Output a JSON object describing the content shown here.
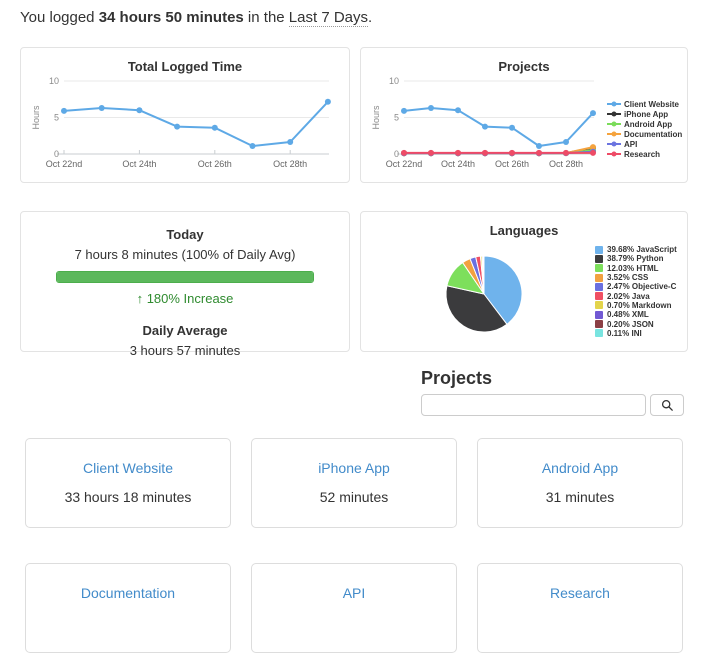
{
  "header": {
    "prefix": "You logged ",
    "total": "34 hours 50 minutes",
    "middle": " in the ",
    "range": "Last 7 Days",
    "suffix": "."
  },
  "chart_data": [
    {
      "type": "line",
      "title": "Total Logged Time",
      "ylabel": "Hours",
      "ylim": [
        0,
        10
      ],
      "yticks": [
        0,
        5,
        10
      ],
      "grid": "horizontal",
      "x": [
        "Oct 22nd",
        "Oct 23rd",
        "Oct 24th",
        "Oct 25th",
        "Oct 26th",
        "Oct 27th",
        "Oct 28th",
        "Oct 29th"
      ],
      "xtick_labels": [
        "Oct 22nd",
        "Oct 24th",
        "Oct 26th",
        "Oct 28th"
      ],
      "series": [
        {
          "name": "Total Logged Time",
          "color": "#5ea9e6",
          "values": [
            5.9,
            6.3,
            6.0,
            3.75,
            3.6,
            1.1,
            1.65,
            7.15
          ]
        }
      ]
    },
    {
      "type": "line",
      "title": "Projects",
      "ylabel": "Hours",
      "ylim": [
        0,
        10
      ],
      "yticks": [
        0,
        5,
        10
      ],
      "grid": "horizontal",
      "legend_position": "right",
      "x": [
        "Oct 22nd",
        "Oct 23rd",
        "Oct 24th",
        "Oct 25th",
        "Oct 26th",
        "Oct 27th",
        "Oct 28th",
        "Oct 29th"
      ],
      "xtick_labels": [
        "Oct 22nd",
        "Oct 24th",
        "Oct 26th",
        "Oct 28th"
      ],
      "series": [
        {
          "name": "Client Website",
          "color": "#5ea9e6",
          "values": [
            5.9,
            6.3,
            6.0,
            3.75,
            3.6,
            1.1,
            1.65,
            5.6
          ]
        },
        {
          "name": "iPhone App",
          "color": "#333333",
          "values": [
            0.1,
            0.1,
            0.1,
            0.1,
            0.1,
            0.1,
            0.12,
            0.85
          ]
        },
        {
          "name": "Android App",
          "color": "#7bdc5a",
          "values": [
            0.1,
            0.1,
            0.1,
            0.1,
            0.1,
            0.1,
            0.12,
            0.5
          ]
        },
        {
          "name": "Documentation",
          "color": "#f5a33d",
          "values": [
            0.1,
            0.1,
            0.1,
            0.1,
            0.1,
            0.1,
            0.12,
            0.95
          ]
        },
        {
          "name": "API",
          "color": "#6b74e0",
          "values": [
            0.1,
            0.1,
            0.1,
            0.1,
            0.1,
            0.1,
            0.12,
            0.3
          ]
        },
        {
          "name": "Research",
          "color": "#ee4b66",
          "values": [
            0.15,
            0.15,
            0.15,
            0.15,
            0.15,
            0.15,
            0.15,
            0.15
          ]
        }
      ]
    },
    {
      "type": "pie",
      "title": "Languages",
      "slices": [
        {
          "label": "JavaScript",
          "value": 39.68,
          "display": "39.68% JavaScript",
          "color": "#6fb3ec"
        },
        {
          "label": "Python",
          "value": 38.79,
          "display": "38.79% Python",
          "color": "#3b3b3d"
        },
        {
          "label": "HTML",
          "value": 12.03,
          "display": "12.03% HTML",
          "color": "#7ddf5c"
        },
        {
          "label": "CSS",
          "value": 3.52,
          "display": "3.52% CSS",
          "color": "#f2a140"
        },
        {
          "label": "Objective-C",
          "value": 2.47,
          "display": "2.47% Objective-C",
          "color": "#6b6fdf"
        },
        {
          "label": "Java",
          "value": 2.02,
          "display": "2.02% Java",
          "color": "#f04f63"
        },
        {
          "label": "Markdown",
          "value": 0.7,
          "display": "0.70% Markdown",
          "color": "#e3d44b"
        },
        {
          "label": "XML",
          "value": 0.48,
          "display": "0.48% XML",
          "color": "#7159d3"
        },
        {
          "label": "JSON",
          "value": 0.2,
          "display": "0.20% JSON",
          "color": "#8b3f45"
        },
        {
          "label": "INI",
          "value": 0.11,
          "display": "0.11% INI",
          "color": "#79e4e0"
        }
      ]
    }
  ],
  "today": {
    "title": "Today",
    "summary": "7 hours 8 minutes (100% of Daily Avg)",
    "progress_pct": 100,
    "increase_arrow": "↑",
    "increase_text": "180% Increase",
    "daily_average_title": "Daily Average",
    "daily_average_value": "3 hours 57 minutes"
  },
  "projects_section": {
    "title": "Projects",
    "search_value": "",
    "search_placeholder": "",
    "search_icon": "magnifier",
    "cards": [
      {
        "name": "Client Website",
        "time": "33 hours 18 minutes"
      },
      {
        "name": "iPhone App",
        "time": "52 minutes"
      },
      {
        "name": "Android App",
        "time": "31 minutes"
      },
      {
        "name": "Documentation",
        "time": ""
      },
      {
        "name": "API",
        "time": ""
      },
      {
        "name": "Research",
        "time": ""
      }
    ]
  },
  "colors": {
    "link": "#428bca",
    "progress_fill": "#5cb85c",
    "progress_border": "#4cae4c",
    "increase_green": "#2f8b2f",
    "grid_line": "#e9e9e9",
    "axis_line": "#c9ced1"
  }
}
